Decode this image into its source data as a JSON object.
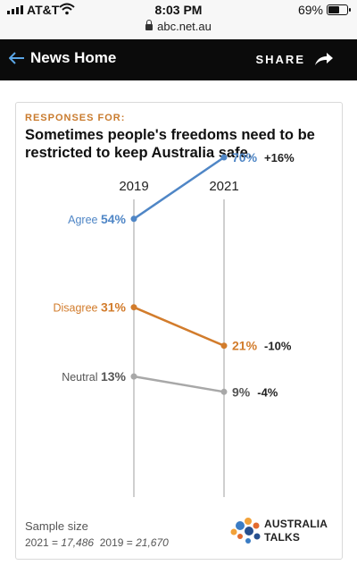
{
  "status_bar": {
    "carrier": "AT&T",
    "time": "8:03 PM",
    "url": "abc.net.au",
    "battery": "69%",
    "battery_level": 0.69
  },
  "nav": {
    "back_label": "News Home",
    "share_label": "SHARE"
  },
  "card": {
    "kicker": "RESPONSES FOR:",
    "headline": "Sometimes people's freedoms need to be restricted to keep Australia safe.",
    "sample_label": "Sample size",
    "sample_2021_label": "2021 = ",
    "sample_2021_value": "17,486",
    "sample_2019_label": "2019 = ",
    "sample_2019_value": "21,670",
    "brand_line1": "AUSTRALIA",
    "brand_line2": "TALKS"
  },
  "chart_data": {
    "type": "line",
    "x": [
      "2019",
      "2021"
    ],
    "series": [
      {
        "name": "Agree",
        "values": [
          54,
          70
        ],
        "change": "+16%",
        "color": "#4f86c6"
      },
      {
        "name": "Disagree",
        "values": [
          31,
          21
        ],
        "change": "-10%",
        "color": "#d27c2c"
      },
      {
        "name": "Neutral",
        "values": [
          13,
          9
        ],
        "change": "-4%",
        "color": "#a8a8a8"
      }
    ]
  }
}
